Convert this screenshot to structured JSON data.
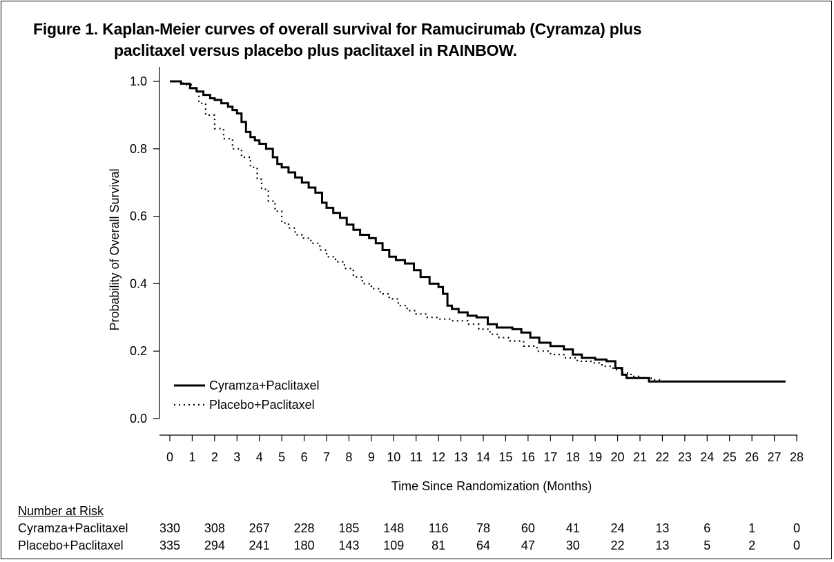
{
  "figure": {
    "title_line1": "Figure 1. Kaplan-Meier curves of overall survival for Ramucirumab (Cyramza) plus",
    "title_line2": "paclitaxel versus placebo plus paclitaxel in RAINBOW."
  },
  "chart_data": {
    "type": "line",
    "subtype": "kaplan-meier",
    "xlabel": "Time Since Randomization (Months)",
    "ylabel": "Probability of Overall Survival",
    "xlim": [
      0,
      28
    ],
    "ylim": [
      0,
      1
    ],
    "xticks": [
      0,
      1,
      2,
      3,
      4,
      5,
      6,
      7,
      8,
      9,
      10,
      11,
      12,
      13,
      14,
      15,
      16,
      17,
      18,
      19,
      20,
      21,
      22,
      23,
      24,
      25,
      26,
      27,
      28
    ],
    "yticks": [
      0.0,
      0.2,
      0.4,
      0.6,
      0.8,
      1.0
    ],
    "ytick_labels": [
      "0.0",
      "0.2",
      "0.4",
      "0.6",
      "0.8",
      "1.0"
    ],
    "grid": false,
    "legend_position": "bottom-left",
    "series": [
      {
        "name": "Cyramza+Paclitaxel",
        "style": "solid",
        "color": "#000000",
        "x": [
          0,
          0.5,
          0.9,
          1.2,
          1.5,
          1.8,
          2.0,
          2.3,
          2.6,
          2.8,
          3.0,
          3.2,
          3.4,
          3.6,
          3.8,
          4.0,
          4.3,
          4.6,
          4.8,
          5.0,
          5.3,
          5.6,
          5.9,
          6.2,
          6.5,
          6.8,
          7.0,
          7.3,
          7.6,
          7.9,
          8.2,
          8.5,
          8.9,
          9.2,
          9.5,
          9.8,
          10.1,
          10.5,
          10.9,
          11.2,
          11.6,
          12.0,
          12.2,
          12.4,
          12.6,
          12.9,
          13.3,
          13.7,
          14.2,
          14.6,
          15.3,
          15.7,
          16.1,
          16.5,
          17.0,
          17.6,
          18.0,
          18.4,
          19.0,
          19.5,
          19.9,
          20.2,
          20.4,
          20.7,
          21.0,
          21.4,
          22.0,
          27.5
        ],
        "y": [
          1.0,
          0.993,
          0.98,
          0.97,
          0.96,
          0.95,
          0.945,
          0.935,
          0.925,
          0.915,
          0.905,
          0.88,
          0.85,
          0.835,
          0.825,
          0.815,
          0.8,
          0.775,
          0.755,
          0.745,
          0.73,
          0.715,
          0.7,
          0.685,
          0.67,
          0.64,
          0.625,
          0.61,
          0.595,
          0.575,
          0.56,
          0.545,
          0.535,
          0.52,
          0.5,
          0.48,
          0.47,
          0.46,
          0.44,
          0.42,
          0.4,
          0.39,
          0.37,
          0.335,
          0.325,
          0.315,
          0.305,
          0.3,
          0.28,
          0.27,
          0.265,
          0.255,
          0.24,
          0.225,
          0.215,
          0.205,
          0.19,
          0.18,
          0.175,
          0.17,
          0.15,
          0.13,
          0.12,
          0.12,
          0.12,
          0.11,
          0.11,
          0.11
        ]
      },
      {
        "name": "Placebo+Paclitaxel",
        "style": "dotted",
        "color": "#000000",
        "x": [
          0,
          0.6,
          1.0,
          1.3,
          1.6,
          2.0,
          2.4,
          2.8,
          3.2,
          3.6,
          3.9,
          4.1,
          4.4,
          4.7,
          5.0,
          5.3,
          5.6,
          5.9,
          6.3,
          6.7,
          7.0,
          7.4,
          7.8,
          8.2,
          8.6,
          9.0,
          9.4,
          9.8,
          10.2,
          10.6,
          11.0,
          11.5,
          12.0,
          12.6,
          13.3,
          13.8,
          14.3,
          14.7,
          15.2,
          15.8,
          16.4,
          17.0,
          17.6,
          18.2,
          18.8,
          19.3,
          19.8,
          20.2,
          20.6,
          21.0,
          21.5,
          22.0,
          27.5
        ],
        "y": [
          1.0,
          0.99,
          0.975,
          0.935,
          0.9,
          0.86,
          0.83,
          0.8,
          0.775,
          0.745,
          0.71,
          0.68,
          0.645,
          0.615,
          0.58,
          0.565,
          0.545,
          0.535,
          0.52,
          0.5,
          0.48,
          0.465,
          0.445,
          0.42,
          0.4,
          0.385,
          0.37,
          0.355,
          0.335,
          0.32,
          0.31,
          0.3,
          0.295,
          0.29,
          0.28,
          0.265,
          0.25,
          0.24,
          0.23,
          0.215,
          0.2,
          0.19,
          0.18,
          0.17,
          0.165,
          0.155,
          0.145,
          0.135,
          0.125,
          0.12,
          0.115,
          0.11,
          0.11
        ]
      }
    ]
  },
  "risk_table": {
    "title": "Number at Risk",
    "rows": [
      {
        "label": "Cyramza+Paclitaxel",
        "values": [
          "330",
          "308",
          "267",
          "228",
          "185",
          "148",
          "116",
          "78",
          "60",
          "41",
          "24",
          "13",
          "6",
          "1",
          "0"
        ]
      },
      {
        "label": "Placebo+Paclitaxel",
        "values": [
          "335",
          "294",
          "241",
          "180",
          "143",
          "109",
          "81",
          "64",
          "47",
          "30",
          "22",
          "13",
          "5",
          "2",
          "0"
        ]
      }
    ],
    "months": [
      0,
      2,
      4,
      6,
      8,
      10,
      12,
      14,
      16,
      18,
      20,
      22,
      24,
      26,
      28
    ]
  }
}
